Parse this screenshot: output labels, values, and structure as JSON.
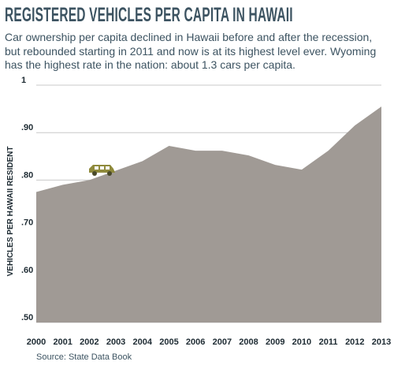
{
  "header": {
    "title": "REGISTERED VEHICLES PER CAPITA IN HAWAII",
    "subtitle": "Car ownership per capita declined in Hawaii before and after the recession, but rebounded starting in 2011 and now is at its highest level ever. Wyoming has the highest rate in the nation: about 1.3 cars per capita."
  },
  "source": "Source: State Data Book",
  "chart_data": {
    "type": "area",
    "categories": [
      "2000",
      "2001",
      "2002",
      "2003",
      "2004",
      "2005",
      "2006",
      "2007",
      "2008",
      "2009",
      "2010",
      "2011",
      "2012",
      "2013"
    ],
    "values": [
      0.775,
      0.79,
      0.8,
      0.82,
      0.84,
      0.872,
      0.862,
      0.862,
      0.852,
      0.832,
      0.822,
      0.862,
      0.915,
      0.955
    ],
    "ylabel": "VEHICLES PER HAWAII RESIDENT",
    "ylim": [
      0.5,
      1.0
    ],
    "yticks": [
      {
        "value": 1.0,
        "label": "1"
      },
      {
        "value": 0.9,
        "label": ".90"
      },
      {
        "value": 0.8,
        "label": ".80"
      },
      {
        "value": 0.7,
        "label": ".70"
      },
      {
        "value": 0.6,
        "label": ".60"
      },
      {
        "value": 0.5,
        "label": ".50"
      }
    ],
    "grid": true,
    "colors": {
      "area": "#a09a95",
      "grid": "#c8c8c8",
      "text": "#1e2b33",
      "car": "#8f8a3c"
    },
    "icon": "car-icon"
  }
}
